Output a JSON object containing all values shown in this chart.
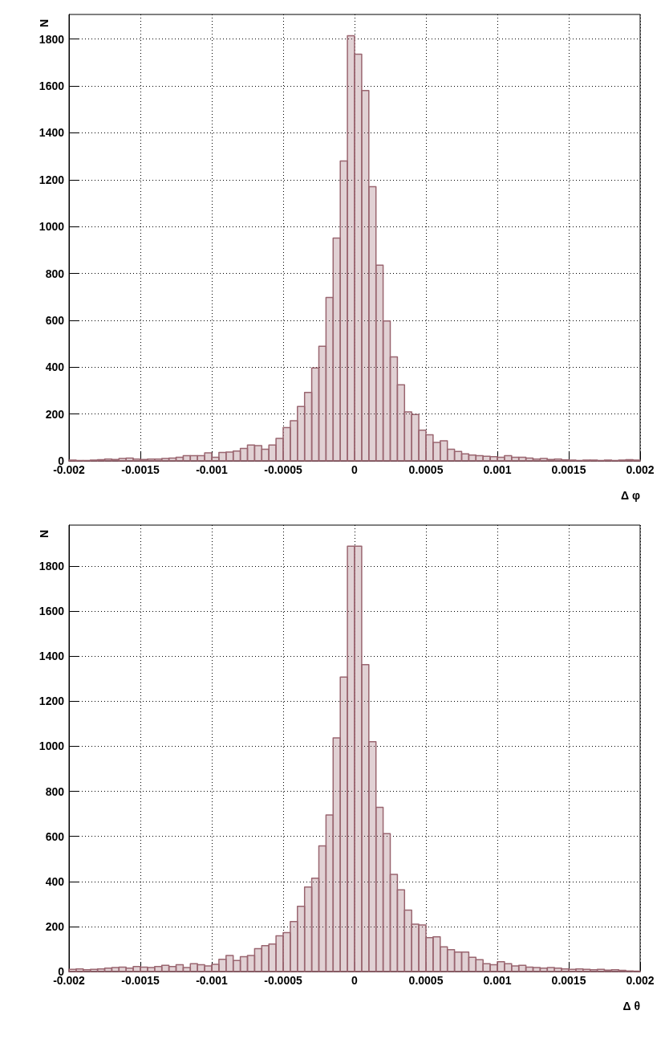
{
  "chart_data": [
    {
      "type": "histogram",
      "xlabel": "Δ φ",
      "ylabel": "N",
      "color": "#9a6670",
      "grid": true,
      "xlim": [
        -0.002,
        0.002
      ],
      "xticks": [
        -0.002,
        -0.0015,
        -0.001,
        -0.0005,
        0,
        0.0005,
        0.001,
        0.0015,
        0.002
      ],
      "ylim": [
        0,
        1905
      ],
      "yticks": [
        0,
        200,
        400,
        600,
        800,
        1000,
        1200,
        1400,
        1600,
        1800
      ],
      "bins": [
        -0.002,
        -0.00195,
        -0.0019,
        -0.00185,
        -0.0018,
        -0.00175,
        -0.0017,
        -0.00165,
        -0.0016,
        -0.00155,
        -0.0015,
        -0.00145,
        -0.0014,
        -0.00135,
        -0.0013,
        -0.00125,
        -0.0012,
        -0.00115,
        -0.0011,
        -0.00105,
        -0.001,
        -0.00095,
        -0.0009,
        -0.00085,
        -0.0008,
        -0.00075,
        -0.0007,
        -0.00065,
        -0.0006,
        -0.00055,
        -0.0005,
        -0.00045,
        -0.0004,
        -0.00035,
        -0.0003,
        -0.00025,
        -0.0002,
        -0.00015,
        -0.0001,
        -5e-05,
        0,
        5e-05,
        0.0001,
        0.00015,
        0.0002,
        0.00025,
        0.0003,
        0.00035,
        0.0004,
        0.00045,
        0.0005,
        0.00055,
        0.0006,
        0.00065,
        0.0007,
        0.00075,
        0.0008,
        0.00085,
        0.0009,
        0.00095,
        0.001,
        0.00105,
        0.0011,
        0.00115,
        0.0012,
        0.00125,
        0.0013,
        0.00135,
        0.0014,
        0.00145,
        0.0015,
        0.00155,
        0.0016,
        0.00165,
        0.0017,
        0.00175,
        0.0018,
        0.00185,
        0.0019,
        0.00195,
        0.002
      ],
      "values": [
        3,
        2,
        2,
        3,
        5,
        8,
        6,
        10,
        12,
        8,
        6,
        8,
        8,
        10,
        12,
        15,
        22,
        22,
        22,
        34,
        15,
        36,
        38,
        42,
        53,
        68,
        65,
        50,
        68,
        96,
        142,
        171,
        232,
        292,
        397,
        489,
        697,
        951,
        1280,
        1814,
        1735,
        1580,
        1170,
        835,
        597,
        444,
        325,
        209,
        198,
        131,
        111,
        79,
        86,
        50,
        40,
        30,
        25,
        22,
        20,
        18,
        15,
        22,
        15,
        15,
        12,
        8,
        10,
        6,
        8,
        4,
        3,
        2,
        3,
        3,
        2,
        3,
        2,
        3,
        5,
        3
      ]
    },
    {
      "type": "histogram",
      "xlabel": "Δ θ",
      "ylabel": "N",
      "color": "#9a6670",
      "grid": true,
      "xlim": [
        -0.002,
        0.002
      ],
      "xticks": [
        -0.002,
        -0.0015,
        -0.001,
        -0.0005,
        0,
        0.0005,
        0.001,
        0.0015,
        0.002
      ],
      "ylim": [
        0,
        1982
      ],
      "yticks": [
        0,
        200,
        400,
        600,
        800,
        1000,
        1200,
        1400,
        1600,
        1800
      ],
      "bins": [
        -0.002,
        -0.00195,
        -0.0019,
        -0.00185,
        -0.0018,
        -0.00175,
        -0.0017,
        -0.00165,
        -0.0016,
        -0.00155,
        -0.0015,
        -0.00145,
        -0.0014,
        -0.00135,
        -0.0013,
        -0.00125,
        -0.0012,
        -0.00115,
        -0.0011,
        -0.00105,
        -0.001,
        -0.00095,
        -0.0009,
        -0.00085,
        -0.0008,
        -0.00075,
        -0.0007,
        -0.00065,
        -0.0006,
        -0.00055,
        -0.0005,
        -0.00045,
        -0.0004,
        -0.00035,
        -0.0003,
        -0.00025,
        -0.0002,
        -0.00015,
        -0.0001,
        -5e-05,
        0,
        5e-05,
        0.0001,
        0.00015,
        0.0002,
        0.00025,
        0.0003,
        0.00035,
        0.0004,
        0.00045,
        0.0005,
        0.00055,
        0.0006,
        0.00065,
        0.0007,
        0.00075,
        0.0008,
        0.00085,
        0.0009,
        0.00095,
        0.001,
        0.00105,
        0.0011,
        0.00115,
        0.0012,
        0.00125,
        0.0013,
        0.00135,
        0.0014,
        0.00145,
        0.0015,
        0.00155,
        0.0016,
        0.00165,
        0.0017,
        0.00175,
        0.0018,
        0.00185,
        0.0019,
        0.00195,
        0.002
      ],
      "values": [
        10,
        12,
        8,
        10,
        12,
        15,
        18,
        20,
        15,
        22,
        20,
        18,
        22,
        28,
        22,
        30,
        18,
        35,
        30,
        25,
        32,
        54,
        71,
        49,
        66,
        71,
        102,
        115,
        122,
        159,
        173,
        222,
        290,
        375,
        414,
        558,
        695,
        1037,
        1307,
        1888,
        1888,
        1363,
        1020,
        729,
        612,
        431,
        363,
        273,
        210,
        207,
        151,
        154,
        110,
        97,
        86,
        86,
        63,
        53,
        35,
        30,
        44,
        35,
        25,
        28,
        20,
        18,
        15,
        18,
        15,
        12,
        10,
        12,
        10,
        8,
        10,
        6,
        8,
        5,
        3,
        2
      ]
    }
  ]
}
